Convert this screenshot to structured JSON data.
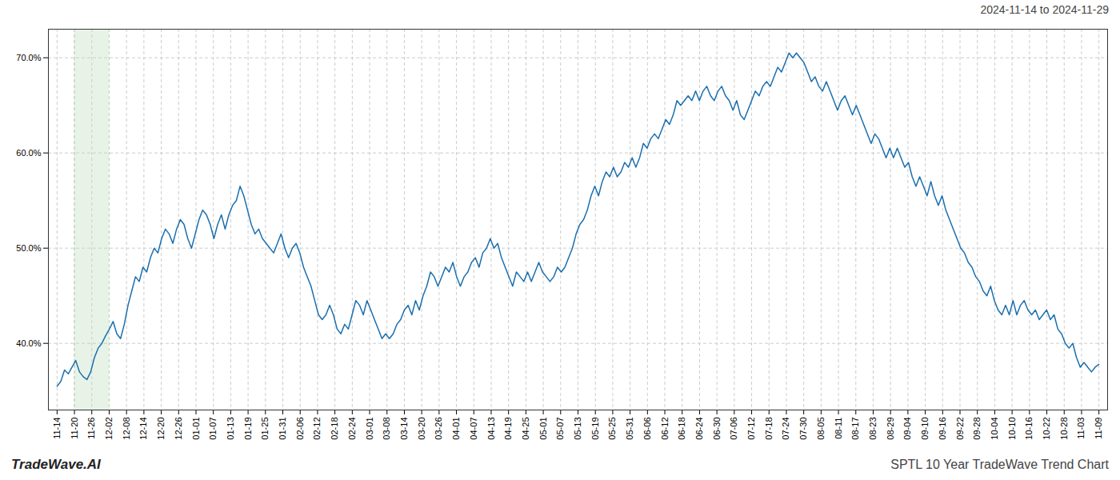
{
  "chart_data": {
    "type": "line",
    "title": "2024-11-14 to 2024-11-29",
    "annotations": [
      "TradeWave.AI",
      "SPTL 10 Year TradeWave Trend Chart"
    ],
    "color": "#1a6faf",
    "grid": true,
    "line_style": "solid",
    "xlim": [
      -0.5,
      60.5
    ],
    "xticks": [
      {
        "value": 0,
        "label": "11-14"
      },
      {
        "value": 1,
        "label": "11-20"
      },
      {
        "value": 2,
        "label": "11-26"
      },
      {
        "value": 3,
        "label": "12-02"
      },
      {
        "value": 4,
        "label": "12-08"
      },
      {
        "value": 5,
        "label": "12-14"
      },
      {
        "value": 6,
        "label": "12-20"
      },
      {
        "value": 7,
        "label": "12-26"
      },
      {
        "value": 8,
        "label": "01-01"
      },
      {
        "value": 9,
        "label": "01-07"
      },
      {
        "value": 10,
        "label": "01-13"
      },
      {
        "value": 11,
        "label": "01-19"
      },
      {
        "value": 12,
        "label": "01-25"
      },
      {
        "value": 13,
        "label": "01-31"
      },
      {
        "value": 14,
        "label": "02-06"
      },
      {
        "value": 15,
        "label": "02-12"
      },
      {
        "value": 16,
        "label": "02-18"
      },
      {
        "value": 17,
        "label": "02-24"
      },
      {
        "value": 18,
        "label": "03-01"
      },
      {
        "value": 19,
        "label": "03-08"
      },
      {
        "value": 20,
        "label": "03-14"
      },
      {
        "value": 21,
        "label": "03-20"
      },
      {
        "value": 22,
        "label": "03-26"
      },
      {
        "value": 23,
        "label": "04-01"
      },
      {
        "value": 24,
        "label": "04-07"
      },
      {
        "value": 25,
        "label": "04-13"
      },
      {
        "value": 26,
        "label": "04-19"
      },
      {
        "value": 27,
        "label": "04-25"
      },
      {
        "value": 28,
        "label": "05-01"
      },
      {
        "value": 29,
        "label": "05-07"
      },
      {
        "value": 30,
        "label": "05-13"
      },
      {
        "value": 31,
        "label": "05-19"
      },
      {
        "value": 32,
        "label": "05-25"
      },
      {
        "value": 33,
        "label": "05-31"
      },
      {
        "value": 34,
        "label": "06-06"
      },
      {
        "value": 35,
        "label": "06-12"
      },
      {
        "value": 36,
        "label": "06-18"
      },
      {
        "value": 37,
        "label": "06-24"
      },
      {
        "value": 38,
        "label": "06-30"
      },
      {
        "value": 39,
        "label": "07-06"
      },
      {
        "value": 40,
        "label": "07-12"
      },
      {
        "value": 41,
        "label": "07-18"
      },
      {
        "value": 42,
        "label": "07-24"
      },
      {
        "value": 43,
        "label": "07-30"
      },
      {
        "value": 44,
        "label": "08-05"
      },
      {
        "value": 45,
        "label": "08-11"
      },
      {
        "value": 46,
        "label": "08-17"
      },
      {
        "value": 47,
        "label": "08-23"
      },
      {
        "value": 48,
        "label": "08-29"
      },
      {
        "value": 49,
        "label": "09-04"
      },
      {
        "value": 50,
        "label": "09-10"
      },
      {
        "value": 51,
        "label": "09-16"
      },
      {
        "value": 52,
        "label": "09-22"
      },
      {
        "value": 53,
        "label": "09-28"
      },
      {
        "value": 54,
        "label": "10-04"
      },
      {
        "value": 55,
        "label": "10-10"
      },
      {
        "value": 56,
        "label": "10-16"
      },
      {
        "value": 57,
        "label": "10-22"
      },
      {
        "value": 58,
        "label": "10-28"
      },
      {
        "value": 59,
        "label": "11-03"
      },
      {
        "value": 60,
        "label": "11-09"
      }
    ],
    "ylim": [
      33,
      73
    ],
    "yticks": [
      {
        "value": 40,
        "label": "40.0%"
      },
      {
        "value": 50,
        "label": "50.0%"
      },
      {
        "value": 60,
        "label": "60.0%"
      },
      {
        "value": 70,
        "label": "70.0%"
      }
    ],
    "highlight": {
      "start": 1,
      "end": 3,
      "color": "#d6ead6"
    },
    "x": [
      0,
      0.2151,
      0.4301,
      0.6452,
      0.8602,
      1.0753,
      1.2903,
      1.5054,
      1.7204,
      1.9355,
      2.1505,
      2.3656,
      2.5806,
      2.7957,
      3.0108,
      3.2258,
      3.4409,
      3.6559,
      3.871,
      4.086,
      4.3011,
      4.5161,
      4.7312,
      4.9462,
      5.1613,
      5.3763,
      5.5914,
      5.8065,
      6.0215,
      6.2366,
      6.4516,
      6.6667,
      6.8817,
      7.0968,
      7.3118,
      7.5269,
      7.7419,
      7.957,
      8.172,
      8.3871,
      8.6022,
      8.8172,
      9.0323,
      9.2473,
      9.4624,
      9.6774,
      9.8925,
      10.1075,
      10.3226,
      10.5376,
      10.7527,
      10.9677,
      11.1828,
      11.3978,
      11.6129,
      11.828,
      12.043,
      12.2581,
      12.4731,
      12.6882,
      12.9032,
      13.1183,
      13.3333,
      13.5484,
      13.7634,
      13.9785,
      14.1935,
      14.4086,
      14.6237,
      14.8387,
      15.0538,
      15.2688,
      15.4839,
      15.6989,
      15.914,
      16.129,
      16.3441,
      16.5591,
      16.7742,
      16.9892,
      17.2043,
      17.4194,
      17.6344,
      17.8495,
      18.0645,
      18.2796,
      18.4946,
      18.7097,
      18.9247,
      19.1398,
      19.3548,
      19.5699,
      19.7849,
      20,
      20.2151,
      20.4301,
      20.6452,
      20.8602,
      21.0753,
      21.2903,
      21.5054,
      21.7204,
      21.9355,
      22.1505,
      22.3656,
      22.5806,
      22.7957,
      23.0108,
      23.2258,
      23.4409,
      23.6559,
      23.871,
      24.086,
      24.3011,
      24.5161,
      24.7312,
      24.9462,
      25.1613,
      25.3763,
      25.5914,
      25.8065,
      26.0215,
      26.2366,
      26.4516,
      26.6667,
      26.8817,
      27.0968,
      27.3118,
      27.5269,
      27.7419,
      27.957,
      28.172,
      28.3871,
      28.6022,
      28.8172,
      29.0323,
      29.2473,
      29.4624,
      29.6774,
      29.8925,
      30.1075,
      30.3226,
      30.5376,
      30.7527,
      30.9677,
      31.1828,
      31.3978,
      31.6129,
      31.828,
      32.043,
      32.2581,
      32.4731,
      32.6882,
      32.9032,
      33.1183,
      33.3333,
      33.5484,
      33.7634,
      33.9785,
      34.1935,
      34.4086,
      34.6237,
      34.8387,
      35.0538,
      35.2688,
      35.4839,
      35.6989,
      35.914,
      36.129,
      36.3441,
      36.5591,
      36.7742,
      36.9892,
      37.2043,
      37.4194,
      37.6344,
      37.8495,
      38.0645,
      38.2796,
      38.4946,
      38.7097,
      38.9247,
      39.1398,
      39.3548,
      39.5699,
      39.7849,
      40,
      40.2151,
      40.4301,
      40.6452,
      40.8602,
      41.0753,
      41.2903,
      41.5054,
      41.7204,
      41.9355,
      42.1505,
      42.3656,
      42.5806,
      42.7957,
      43.0108,
      43.2258,
      43.4409,
      43.6559,
      43.871,
      44.086,
      44.3011,
      44.5161,
      44.7312,
      44.9462,
      45.1613,
      45.3763,
      45.5914,
      45.8065,
      46.0215,
      46.2366,
      46.4516,
      46.6667,
      46.8817,
      47.0968,
      47.3118,
      47.5269,
      47.7419,
      47.957,
      48.172,
      48.3871,
      48.6022,
      48.8172,
      49.0323,
      49.2473,
      49.4624,
      49.6774,
      49.8925,
      50.1075,
      50.3226,
      50.5376,
      50.7527,
      50.9677,
      51.1828,
      51.3978,
      51.6129,
      51.828,
      52.043,
      52.2581,
      52.4731,
      52.6882,
      52.9032,
      53.1183,
      53.3333,
      53.5484,
      53.7634,
      53.9785,
      54.1935,
      54.4086,
      54.6237,
      54.8387,
      55.0538,
      55.2688,
      55.4839,
      55.6989,
      55.914,
      56.129,
      56.3441,
      56.5591,
      56.7742,
      56.9892,
      57.2043,
      57.4194,
      57.6344,
      57.8495,
      58.0645,
      58.2796,
      58.4946,
      58.7097,
      58.9247,
      59.1398,
      59.3548,
      59.5699,
      59.7849,
      60
    ],
    "values": [
      35.5,
      36.0,
      37.2,
      36.8,
      37.5,
      38.2,
      37.0,
      36.5,
      36.2,
      37.0,
      38.5,
      39.5,
      40.0,
      40.8,
      41.5,
      42.3,
      41.0,
      40.5,
      42.0,
      44.0,
      45.5,
      47.0,
      46.5,
      48.0,
      47.5,
      49.0,
      50.0,
      49.5,
      51.0,
      52.0,
      51.5,
      50.5,
      52.0,
      53.0,
      52.5,
      51.0,
      50.0,
      51.5,
      53.0,
      54.0,
      53.5,
      52.5,
      51.0,
      52.5,
      53.5,
      52.0,
      53.5,
      54.5,
      55.0,
      56.5,
      55.5,
      54.0,
      52.5,
      51.5,
      52.0,
      51.0,
      50.5,
      50.0,
      49.5,
      50.5,
      51.5,
      50.0,
      49.0,
      50.0,
      50.5,
      49.5,
      48.0,
      47.0,
      46.0,
      44.5,
      43.0,
      42.5,
      43.0,
      44.0,
      43.0,
      41.5,
      41.0,
      42.0,
      41.5,
      43.0,
      44.5,
      44.0,
      43.0,
      44.5,
      43.5,
      42.5,
      41.5,
      40.5,
      41.0,
      40.5,
      41.0,
      42.0,
      42.5,
      43.5,
      44.0,
      43.0,
      44.5,
      43.5,
      45.0,
      46.0,
      47.5,
      47.0,
      46.0,
      47.0,
      48.0,
      47.5,
      48.5,
      47.0,
      46.0,
      47.0,
      47.5,
      48.5,
      49.0,
      48.0,
      49.5,
      50.0,
      51.0,
      50.0,
      50.5,
      49.0,
      48.0,
      47.0,
      46.0,
      47.5,
      47.0,
      46.5,
      47.5,
      46.5,
      47.5,
      48.5,
      47.5,
      47.0,
      46.5,
      47.0,
      48.0,
      47.5,
      48.0,
      49.0,
      50.0,
      51.5,
      52.5,
      53.0,
      54.0,
      55.5,
      56.5,
      55.5,
      57.0,
      58.0,
      57.5,
      58.5,
      57.5,
      58.0,
      59.0,
      58.5,
      59.5,
      58.5,
      59.5,
      61.0,
      60.5,
      61.5,
      62.0,
      61.5,
      62.5,
      63.5,
      63.0,
      64.0,
      65.5,
      65.0,
      65.5,
      66.0,
      65.5,
      66.5,
      65.5,
      66.5,
      67.0,
      66.0,
      65.5,
      66.5,
      67.0,
      66.0,
      65.5,
      64.5,
      65.5,
      64.0,
      63.5,
      64.5,
      65.5,
      66.5,
      66.0,
      67.0,
      67.5,
      67.0,
      68.0,
      69.0,
      68.5,
      69.5,
      70.5,
      70.0,
      70.5,
      70.0,
      69.5,
      68.5,
      67.5,
      68.0,
      67.0,
      66.5,
      67.5,
      66.5,
      65.5,
      64.5,
      65.5,
      66.0,
      65.0,
      64.0,
      65.0,
      64.0,
      63.0,
      62.0,
      61.0,
      62.0,
      61.5,
      60.5,
      59.5,
      60.5,
      59.5,
      60.5,
      59.5,
      58.5,
      59.0,
      57.5,
      56.5,
      57.5,
      56.5,
      55.5,
      57.0,
      55.5,
      54.5,
      55.5,
      54.0,
      53.0,
      52.0,
      51.0,
      50.0,
      49.5,
      48.5,
      48.0,
      47.0,
      46.5,
      45.5,
      45.0,
      46.0,
      44.5,
      43.5,
      43.0,
      44.0,
      43.0,
      44.5,
      43.0,
      44.0,
      44.5,
      43.5,
      43.0,
      43.5,
      42.5,
      43.0,
      43.5,
      42.5,
      43.0,
      41.5,
      41.0,
      40.0,
      39.5,
      40.0,
      38.5,
      37.5,
      38.0,
      37.5,
      37.0,
      37.5,
      37.8
    ]
  }
}
